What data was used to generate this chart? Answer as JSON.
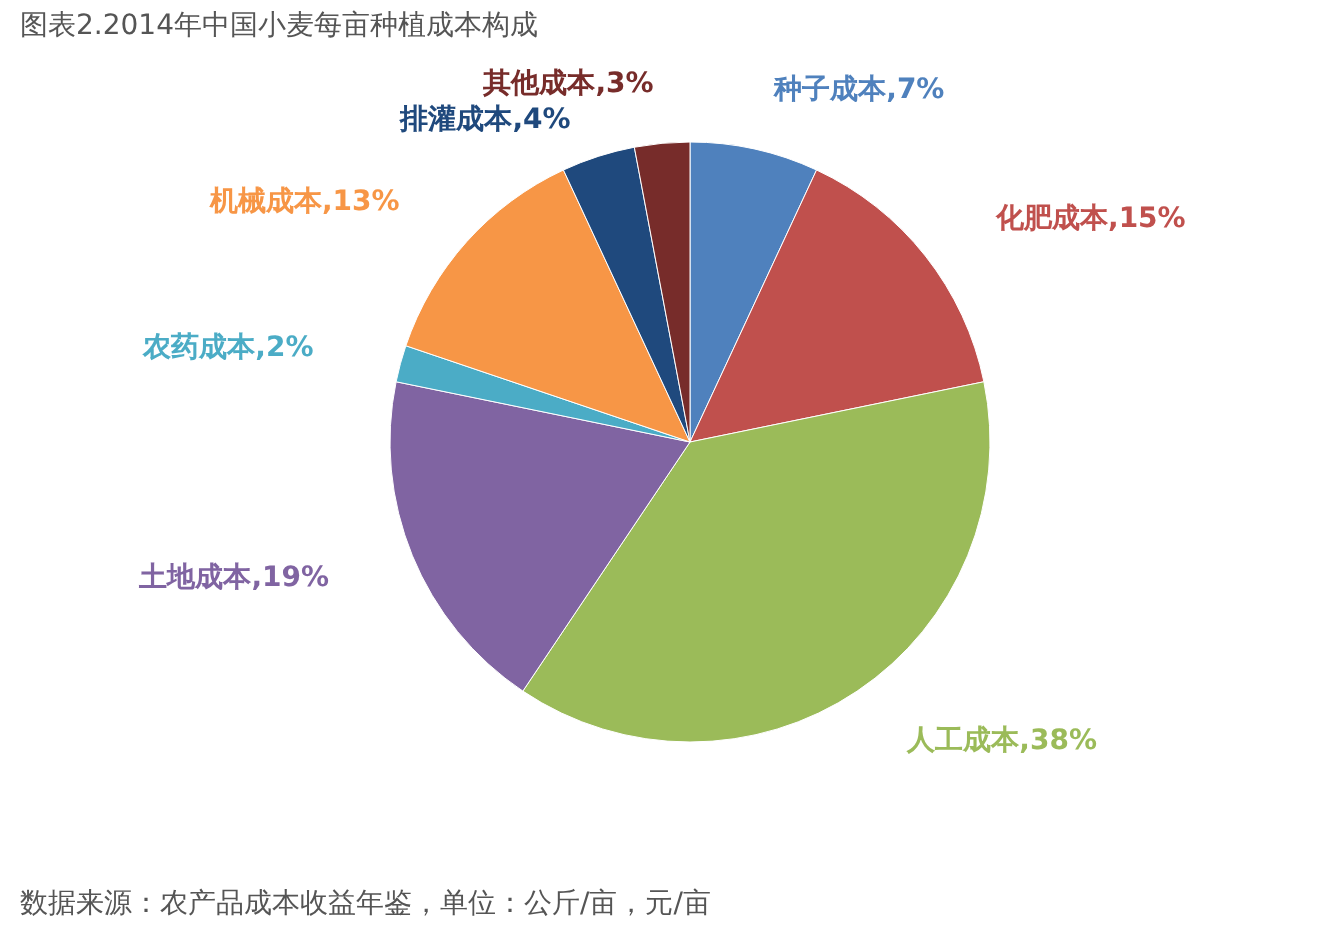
{
  "chart_data": {
    "type": "pie",
    "title": "图表2.2014年中国小麦每亩种植成本构成",
    "categories": [
      "种子成本",
      "化肥成本",
      "人工成本",
      "土地成本",
      "农药成本",
      "机械成本",
      "排灌成本",
      "其他成本"
    ],
    "values": [
      7,
      15,
      38,
      19,
      2,
      13,
      4,
      3
    ],
    "value_labels": [
      "7%",
      "15%",
      "38%",
      "19%",
      "2%",
      "13%",
      "4%",
      "3%"
    ],
    "colors": [
      "#4f81bd",
      "#c0504d",
      "#9bbb59",
      "#8064a2",
      "#4bacc6",
      "#f79646",
      "#1f497d",
      "#772c2a"
    ],
    "annotations": [
      "数据来源：农产品成本收益年鉴，单位：公斤/亩，元/亩"
    ]
  }
}
